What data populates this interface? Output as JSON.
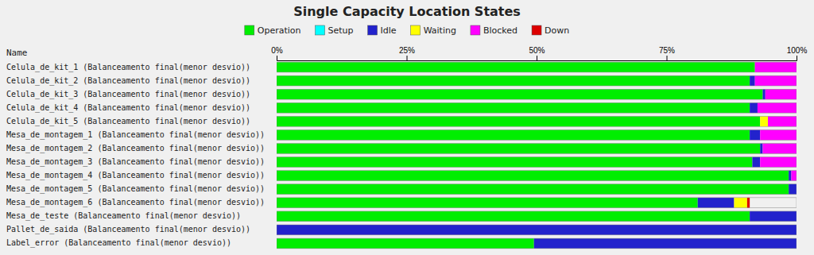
{
  "chart_data": {
    "type": "bar",
    "orientation": "horizontal",
    "stacked": true,
    "title": "Single Capacity Location States",
    "ylabel": "Name",
    "categories": [
      "Celula_de_kit_1 (Balanceamento final(menor desvio))",
      "Celula_de_kit_2 (Balanceamento final(menor desvio))",
      "Celula_de_kit_3 (Balanceamento final(menor desvio))",
      "Celula_de_kit_4 (Balanceamento final(menor desvio))",
      "Celula_de_kit_5 (Balanceamento final(menor desvio))",
      "Mesa_de_montagem_1 (Balanceamento final(menor desvio))",
      "Mesa_de_montagem_2 (Balanceamento final(menor desvio))",
      "Mesa_de_montagem_3 (Balanceamento final(menor desvio))",
      "Mesa_de_montagem_4 (Balanceamento final(menor desvio))",
      "Mesa_de_montagem_5 (Balanceamento final(menor desvio))",
      "Mesa_de_montagem_6 (Balanceamento final(menor desvio))",
      "Mesa_de_teste (Balanceamento final(menor desvio))",
      "Pallet_de_saida (Balanceamento final(menor desvio))",
      "Label_error (Balanceamento final(menor desvio))"
    ],
    "series": [
      {
        "name": "Operation",
        "color": "#00ee00",
        "values": [
          92.0,
          91.0,
          93.5,
          91.0,
          93.0,
          91.0,
          93.0,
          91.5,
          98.5,
          98.5,
          81.0,
          91.0,
          0.0,
          49.5
        ]
      },
      {
        "name": "Setup",
        "color": "#00ffff",
        "values": [
          0.0,
          0.0,
          0.0,
          0.0,
          0.0,
          0.0,
          0.0,
          0.0,
          0.0,
          0.0,
          0.0,
          0.0,
          0.0,
          0.0
        ]
      },
      {
        "name": "Idle",
        "color": "#2222cc",
        "values": [
          0.0,
          1.0,
          0.5,
          1.5,
          0.0,
          2.0,
          0.5,
          1.5,
          0.5,
          1.5,
          7.0,
          9.0,
          100.0,
          50.5
        ]
      },
      {
        "name": "Waiting",
        "color": "#ffff00",
        "values": [
          0.0,
          0.0,
          0.0,
          0.0,
          1.5,
          0.0,
          0.0,
          0.0,
          0.0,
          0.0,
          2.5,
          0.0,
          0.0,
          0.0
        ]
      },
      {
        "name": "Blocked",
        "color": "#ff00ff",
        "values": [
          8.0,
          8.0,
          6.0,
          7.5,
          5.5,
          7.0,
          6.5,
          7.0,
          1.0,
          0.0,
          0.0,
          0.0,
          0.0,
          0.0
        ]
      },
      {
        "name": "Down",
        "color": "#dd0000",
        "values": [
          0.0,
          0.0,
          0.0,
          0.0,
          0.0,
          0.0,
          0.0,
          0.0,
          0.0,
          0.0,
          0.5,
          0.0,
          0.0,
          0.0
        ]
      }
    ],
    "xlim": [
      0,
      100
    ],
    "xticks": [
      {
        "value": 0,
        "label": "0%"
      },
      {
        "value": 25,
        "label": "25%"
      },
      {
        "value": 50,
        "label": "50%"
      },
      {
        "value": 75,
        "label": "75%"
      },
      {
        "value": 100,
        "label": "100%"
      }
    ]
  }
}
